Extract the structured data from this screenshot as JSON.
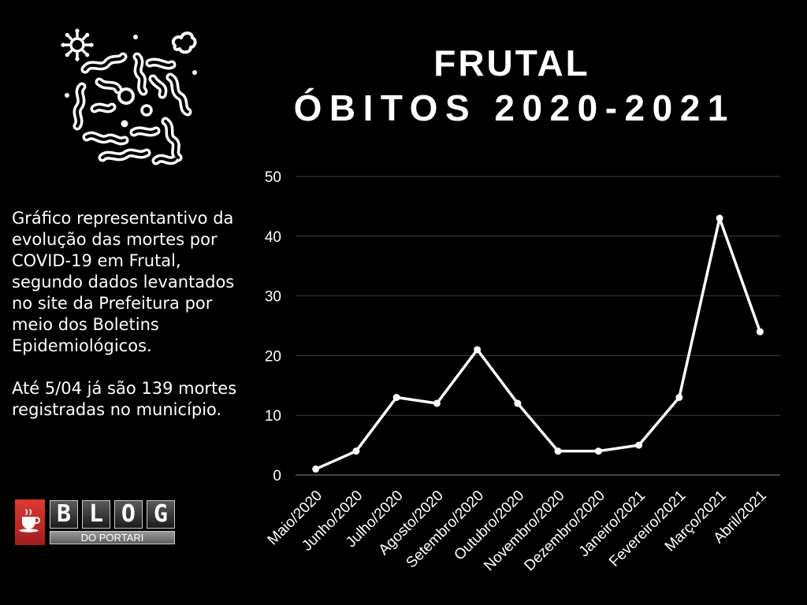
{
  "chart_data": {
    "type": "line",
    "title": "FRUTAL",
    "subtitle": "ÓBITOS 2020-2021",
    "categories": [
      "Maio/2020",
      "Junho/2020",
      "Julho/2020",
      "Agosto/2020",
      "Setembro/2020",
      "Outubro/2020",
      "Novembro/2020",
      "Dezembro/2020",
      "Janeiro/2021",
      "Fevereiro/2021",
      "Março/2021",
      "Abril/2021"
    ],
    "values": [
      1,
      4,
      13,
      12,
      21,
      12,
      4,
      4,
      5,
      13,
      43,
      24
    ],
    "ylim": [
      0,
      50
    ],
    "yticks": [
      0,
      10,
      20,
      30,
      40,
      50
    ],
    "grid": true,
    "markers": true,
    "colors": {
      "background": "#000000",
      "line": "#ffffff",
      "marker": "#ffffff",
      "grid": "#404040",
      "axis": "#8a8a8a",
      "text": "#ffffff"
    }
  },
  "description": {
    "paragraphs": [
      [
        "Gráfico representantivo da",
        "evolução das mortes por",
        "COVID-19 em Frutal,",
        "segundo dados levantados",
        "no site da Prefeitura por",
        "meio dos Boletins",
        "Epidemiológicos."
      ],
      [
        "Até 5/04 já são 139 mortes",
        "registradas no município."
      ]
    ]
  },
  "logo": {
    "title": "BLOG",
    "subtitle": "DO PORTARI",
    "accent_color": "#c62a2a"
  },
  "icons": {
    "header": "virus-icon",
    "logo": "coffee-cup-icon"
  },
  "colors": {
    "page_background": "#000000",
    "text": "#ffffff"
  }
}
